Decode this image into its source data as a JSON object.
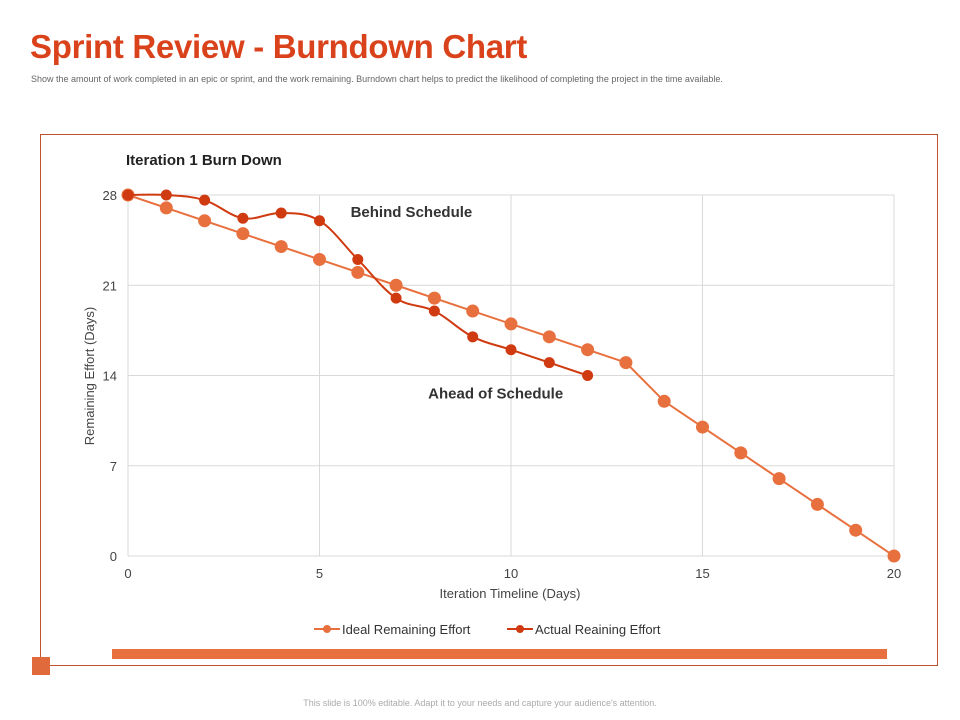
{
  "header": {
    "title": "Sprint Review - Burndown Chart",
    "subtitle": "Show the amount of work completed in an epic or sprint, and the work remaining. Burndown chart helps to predict the likelihood of completing the project in the time available."
  },
  "footer": {
    "note": "This slide is 100% editable. Adapt it to your needs and capture your audience's attention."
  },
  "colors": {
    "accent": "#D9421B",
    "ideal": "#E8703E",
    "actual": "#D03A10",
    "grid": "#D9D9D9"
  },
  "chart_data": {
    "type": "line",
    "title": "Iteration 1 Burn Down",
    "xlabel": "Iteration Timeline (Days)",
    "ylabel": "Remaining Effort (Days)",
    "xlim": [
      0,
      20
    ],
    "ylim": [
      0,
      28
    ],
    "xticks": [
      0,
      5,
      10,
      15,
      20
    ],
    "yticks": [
      0,
      7,
      14,
      21,
      28
    ],
    "grid": true,
    "legend_position": "bottom",
    "series": [
      {
        "name": "Ideal Remaining Effort",
        "color": "#E8703E",
        "x": [
          0,
          1,
          2,
          3,
          4,
          5,
          6,
          7,
          8,
          9,
          10,
          11,
          12,
          13,
          14,
          15,
          16,
          17,
          18,
          19,
          20
        ],
        "values": [
          28,
          27,
          26,
          25,
          24,
          23,
          22,
          21,
          20,
          19,
          18,
          17,
          16,
          15,
          12,
          10,
          8,
          6,
          4,
          2,
          0
        ]
      },
      {
        "name": "Actual Reaining Effort",
        "color": "#D03A10",
        "x": [
          0,
          1,
          2,
          3,
          4,
          5,
          6,
          7,
          8,
          9,
          10,
          11,
          12
        ],
        "values": [
          28,
          28,
          27.6,
          26.2,
          26.6,
          26,
          23,
          20,
          19,
          17,
          16,
          15,
          14
        ]
      }
    ],
    "annotations": [
      {
        "text": "Behind Schedule",
        "x": 7.4,
        "y": 26.3
      },
      {
        "text": "Ahead of Schedule",
        "x": 9.6,
        "y": 12.2
      }
    ]
  }
}
